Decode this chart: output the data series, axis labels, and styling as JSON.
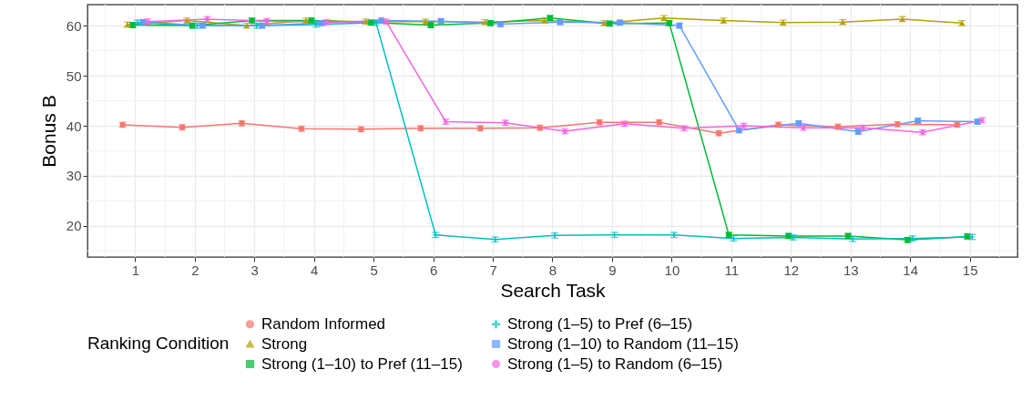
{
  "chart_data": {
    "type": "line",
    "xlabel": "Search Task",
    "ylabel": "Bonus B",
    "legend_title": "Ranking Condition",
    "xlim": [
      0.2,
      15.8
    ],
    "xticks": [
      1,
      2,
      3,
      4,
      5,
      6,
      7,
      8,
      9,
      10,
      11,
      12,
      13,
      14,
      15
    ],
    "ylim": [
      13.8,
      64.2
    ],
    "yticks": [
      20,
      30,
      40,
      50,
      60
    ],
    "grid": true,
    "legend": "bottom",
    "line_style": "solid",
    "series": [
      {
        "name": "Random Informed",
        "color": "#f8766d",
        "marker": "circle",
        "x": [
          0.79,
          1.79,
          2.79,
          3.79,
          4.79,
          5.79,
          6.79,
          7.79,
          8.79,
          9.79,
          10.79,
          11.79,
          12.79,
          13.79,
          14.79
        ],
        "values": [
          40.2,
          39.7,
          40.5,
          39.4,
          39.3,
          39.5,
          39.5,
          39.6,
          40.7,
          40.7,
          38.5,
          40.2,
          39.8,
          40.3,
          40.2
        ],
        "errors": [
          0.5,
          0.5,
          0.5,
          0.5,
          0.5,
          0.5,
          0.5,
          0.5,
          0.5,
          0.5,
          0.5,
          0.5,
          0.5,
          0.5,
          0.5
        ]
      },
      {
        "name": "Strong",
        "color": "#b79f00",
        "marker": "triangle",
        "x": [
          0.87,
          1.87,
          2.87,
          3.87,
          4.87,
          5.87,
          6.87,
          7.87,
          8.87,
          9.87,
          10.87,
          11.87,
          12.87,
          13.87,
          14.87
        ],
        "values": [
          60.2,
          61,
          60,
          61,
          60.8,
          60.8,
          60.7,
          61,
          60.5,
          61.5,
          61,
          60.6,
          60.7,
          61.3,
          60.5
        ],
        "errors": [
          0.5,
          0.5,
          0.5,
          0.5,
          0.5,
          0.5,
          0.5,
          0.5,
          0.5,
          0.5,
          0.5,
          0.5,
          0.5,
          0.5,
          0.5
        ]
      },
      {
        "name": "Strong (1–10) to Pref (11–15)",
        "color": "#00ba38",
        "marker": "square",
        "x": [
          0.96,
          1.96,
          2.96,
          3.96,
          4.96,
          5.96,
          6.96,
          7.96,
          8.96,
          9.96,
          10.96,
          11.96,
          12.96,
          13.96,
          14.96
        ],
        "values": [
          60.1,
          60,
          61,
          61,
          60.6,
          60.1,
          60.5,
          61.5,
          60.4,
          60.5,
          18.2,
          18,
          18,
          17.2,
          17.9
        ],
        "errors": [
          0.5,
          0.5,
          0.5,
          0.5,
          0.5,
          0.5,
          0.5,
          0.5,
          0.5,
          0.5,
          0.5,
          0.5,
          0.5,
          0.5,
          0.5
        ]
      },
      {
        "name": "Strong (1–5) to Pref (6–15)",
        "color": "#00bfc4",
        "marker": "cross",
        "x": [
          1.04,
          2.04,
          3.04,
          4.04,
          5.04,
          6.04,
          7.04,
          8.04,
          9.04,
          10.04,
          11.04,
          12.04,
          13.04,
          14.04,
          15.04
        ],
        "values": [
          60.6,
          60,
          60,
          60.2,
          60.6,
          18.2,
          17.3,
          18.1,
          18.2,
          18.2,
          17.5,
          17.7,
          17.4,
          17.5,
          17.8
        ],
        "errors": [
          0.5,
          0.5,
          0.5,
          0.5,
          0.5,
          0.5,
          0.5,
          0.5,
          0.5,
          0.5,
          0.5,
          0.5,
          0.5,
          0.5,
          0.5
        ]
      },
      {
        "name": "Strong (1–10) to Random (11–15)",
        "color": "#619cff",
        "marker": "square",
        "x": [
          1.13,
          2.13,
          3.13,
          4.13,
          5.13,
          6.13,
          7.13,
          8.13,
          9.13,
          10.13,
          11.13,
          12.13,
          13.13,
          14.13,
          15.13
        ],
        "values": [
          60.7,
          60,
          60,
          60.5,
          61,
          60.9,
          60.3,
          60.7,
          60.6,
          60,
          39.1,
          40.5,
          38.8,
          41,
          40.8
        ],
        "errors": [
          0.5,
          0.5,
          0.5,
          0.5,
          0.5,
          0.5,
          0.5,
          0.5,
          0.5,
          0.5,
          0.5,
          0.5,
          0.5,
          0.5,
          0.5
        ]
      },
      {
        "name": "Strong (1–5) to Random (6–15)",
        "color": "#f564e3",
        "marker": "star",
        "x": [
          1.21,
          2.21,
          3.21,
          4.21,
          5.21,
          6.21,
          7.21,
          8.21,
          9.21,
          10.21,
          11.21,
          12.21,
          13.21,
          14.21,
          15.21
        ],
        "values": [
          60.8,
          61.3,
          60.9,
          60.7,
          60.8,
          40.8,
          40.6,
          38.9,
          40.4,
          39.5,
          40,
          39.6,
          39.6,
          38.7,
          41.1
        ],
        "errors": [
          0.5,
          0.5,
          0.5,
          0.5,
          0.5,
          0.5,
          0.5,
          0.5,
          0.5,
          0.5,
          0.5,
          0.5,
          0.5,
          0.5,
          0.5
        ]
      }
    ]
  }
}
